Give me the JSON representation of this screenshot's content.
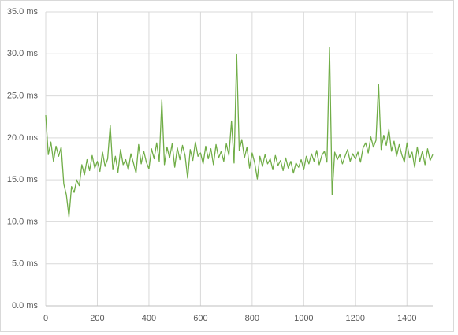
{
  "chart_data": {
    "type": "line",
    "x": [
      0,
      10,
      20,
      30,
      40,
      50,
      60,
      70,
      80,
      90,
      100,
      110,
      120,
      130,
      140,
      150,
      160,
      170,
      180,
      190,
      200,
      210,
      220,
      230,
      240,
      250,
      260,
      270,
      280,
      290,
      300,
      310,
      320,
      330,
      340,
      350,
      360,
      370,
      380,
      390,
      400,
      410,
      420,
      430,
      440,
      450,
      460,
      470,
      480,
      490,
      500,
      510,
      520,
      530,
      540,
      550,
      560,
      570,
      580,
      590,
      600,
      610,
      620,
      630,
      640,
      650,
      660,
      670,
      680,
      690,
      700,
      710,
      720,
      730,
      740,
      750,
      760,
      770,
      780,
      790,
      800,
      810,
      820,
      830,
      840,
      850,
      860,
      870,
      880,
      890,
      900,
      910,
      920,
      930,
      940,
      950,
      960,
      970,
      980,
      990,
      1000,
      1010,
      1020,
      1030,
      1040,
      1050,
      1060,
      1070,
      1080,
      1090,
      1100,
      1110,
      1120,
      1130,
      1140,
      1150,
      1160,
      1170,
      1180,
      1190,
      1200,
      1210,
      1220,
      1230,
      1240,
      1250,
      1260,
      1270,
      1280,
      1290,
      1300,
      1310,
      1320,
      1330,
      1340,
      1350,
      1360,
      1370,
      1380,
      1390,
      1400,
      1410,
      1420,
      1430,
      1440,
      1450,
      1460,
      1470,
      1480,
      1490,
      1500
    ],
    "series": [
      {
        "color": "#70ad47",
        "values": [
          22.7,
          18.0,
          19.5,
          17.2,
          19.0,
          17.8,
          18.9,
          14.5,
          13.2,
          10.6,
          14.2,
          13.5,
          15.0,
          14.3,
          16.8,
          15.6,
          17.4,
          16.1,
          17.9,
          16.4,
          17.2,
          16.0,
          18.3,
          16.6,
          17.5,
          21.5,
          16.2,
          17.8,
          15.9,
          18.6,
          16.8,
          17.4,
          16.2,
          18.1,
          17.0,
          15.8,
          19.2,
          16.9,
          18.4,
          17.1,
          16.3,
          18.7,
          17.5,
          19.4,
          17.2,
          24.5,
          16.8,
          18.9,
          17.6,
          19.3,
          16.5,
          18.8,
          17.4,
          19.1,
          17.9,
          15.2,
          18.6,
          17.3,
          19.5,
          17.8,
          18.2,
          16.9,
          19.0,
          17.5,
          18.7,
          16.8,
          19.2,
          17.6,
          18.4,
          17.2,
          19.3,
          17.9,
          22.0,
          17.0,
          29.9,
          18.5,
          19.8,
          17.6,
          18.9,
          16.4,
          18.2,
          17.0,
          15.1,
          17.8,
          16.6,
          18.0,
          16.9,
          17.5,
          16.2,
          17.9,
          16.7,
          17.3,
          16.1,
          17.6,
          16.4,
          17.2,
          15.8,
          17.0,
          16.5,
          17.4,
          16.2,
          17.8,
          16.9,
          18.1,
          17.2,
          18.5,
          16.8,
          17.9,
          18.4,
          17.1,
          30.8,
          13.2,
          18.3,
          17.4,
          18.0,
          16.9,
          17.8,
          18.6,
          17.2,
          18.1,
          17.5,
          18.3,
          17.1,
          18.8,
          19.4,
          18.2,
          20.1,
          18.9,
          19.7,
          26.4,
          18.6,
          20.3,
          19.1,
          21.0,
          18.4,
          19.6,
          17.8,
          19.2,
          18.0,
          17.1,
          19.4,
          17.6,
          18.3,
          16.5,
          18.9,
          17.2,
          18.4,
          16.8,
          18.7,
          17.3,
          18.0
        ]
      }
    ],
    "xlim": [
      0,
      1500
    ],
    "xticks": [
      0,
      200,
      400,
      600,
      800,
      1000,
      1200,
      1400
    ],
    "ylim": [
      0,
      35
    ],
    "yticks": [
      {
        "value": 0,
        "label": "0.0 ms"
      },
      {
        "value": 5,
        "label": "5.0 ms"
      },
      {
        "value": 10,
        "label": "10.0 ms"
      },
      {
        "value": 15,
        "label": "15.0 ms"
      },
      {
        "value": 20,
        "label": "20.0 ms"
      },
      {
        "value": 25,
        "label": "25.0 ms"
      },
      {
        "value": 30,
        "label": "30.0 ms"
      },
      {
        "value": 35,
        "label": "35.0 ms"
      }
    ],
    "grid": true
  }
}
